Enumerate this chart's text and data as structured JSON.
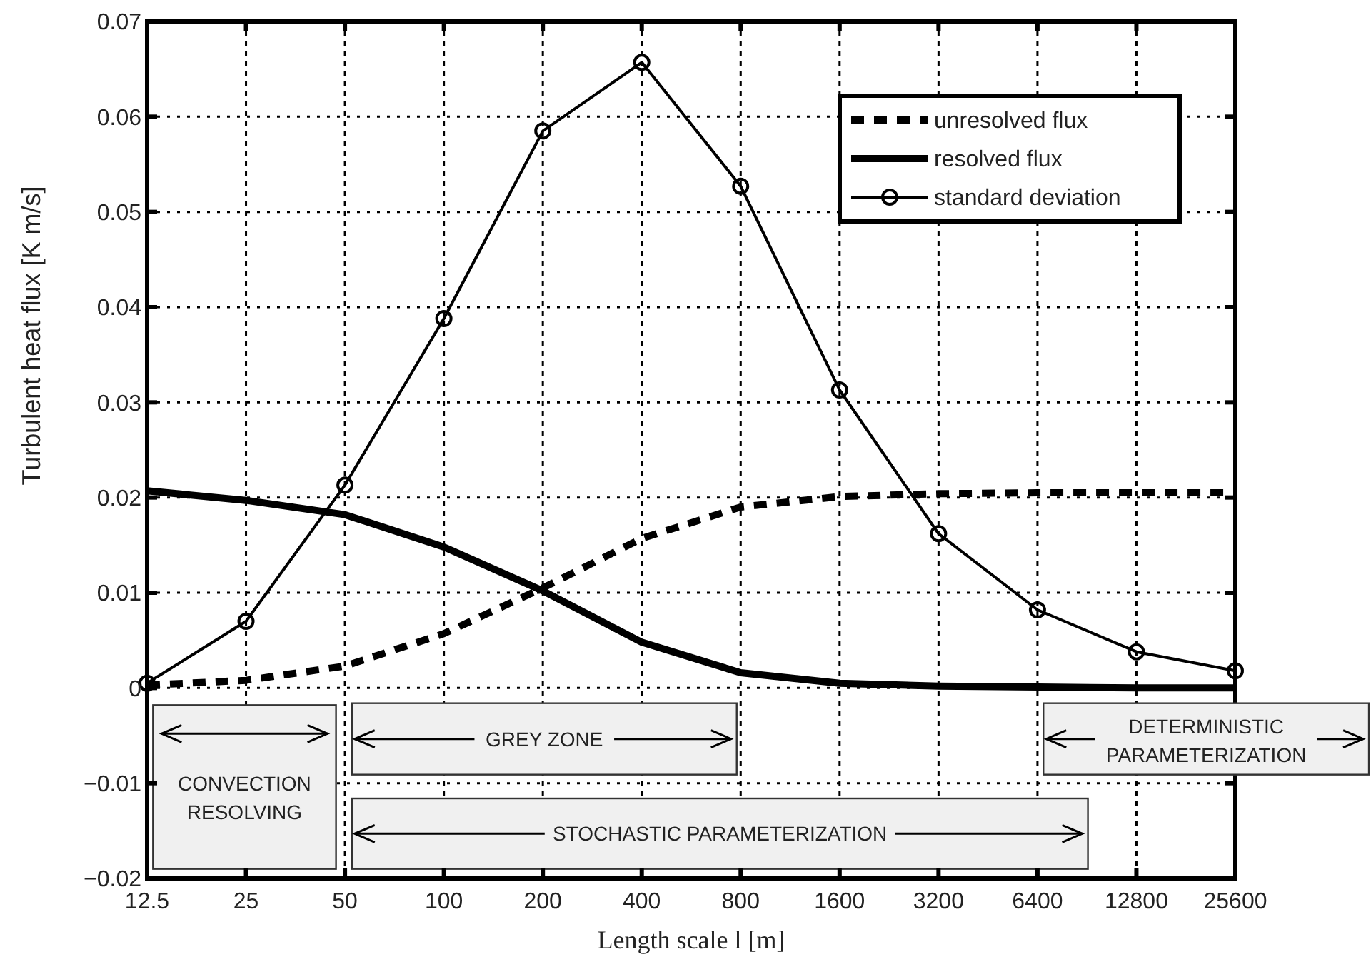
{
  "chart_data": {
    "type": "line",
    "xlabel": "Length scale l [m]",
    "ylabel": "Turbulent heat flux [K m/s]",
    "categories": [
      "12.5",
      "25",
      "50",
      "100",
      "200",
      "400",
      "800",
      "1600",
      "3200",
      "6400",
      "12800",
      "25600"
    ],
    "series": [
      {
        "name": "unresolved flux",
        "color": "#000000",
        "line_style": "dashed",
        "marker": "none",
        "values": [
          0.0003,
          0.0008,
          0.0023,
          0.0057,
          0.0105,
          0.0157,
          0.019,
          0.0201,
          0.0204,
          0.0205,
          0.0205,
          0.0205
        ]
      },
      {
        "name": "resolved flux",
        "color": "#000000",
        "line_style": "solid",
        "marker": "none",
        "values": [
          0.0207,
          0.0197,
          0.0182,
          0.0148,
          0.0102,
          0.0048,
          0.0016,
          0.0005,
          0.0002,
          0.0001,
          0.0,
          0.0
        ]
      },
      {
        "name": "standard deviation",
        "color": "#000000",
        "line_style": "solid",
        "marker": "circle",
        "values": [
          0.0005,
          0.007,
          0.0213,
          0.0388,
          0.0585,
          0.0657,
          0.0527,
          0.0313,
          0.0162,
          0.0082,
          0.0038,
          0.0018
        ]
      }
    ],
    "ylim": [
      -0.02,
      0.07
    ],
    "yticks": [
      {
        "value": -0.02,
        "label": "−0.02"
      },
      {
        "value": -0.01,
        "label": "−0.01"
      },
      0,
      0.01,
      0.02,
      0.03,
      0.04,
      0.05,
      0.06,
      0.07
    ],
    "grid": true,
    "legend": "top right",
    "annotations": [
      "CONVECTION RESOLVING",
      "GREY ZONE",
      "STOCHASTIC PARAMETERIZATION",
      "DETERMINISTIC PARAMETERIZATION"
    ]
  }
}
